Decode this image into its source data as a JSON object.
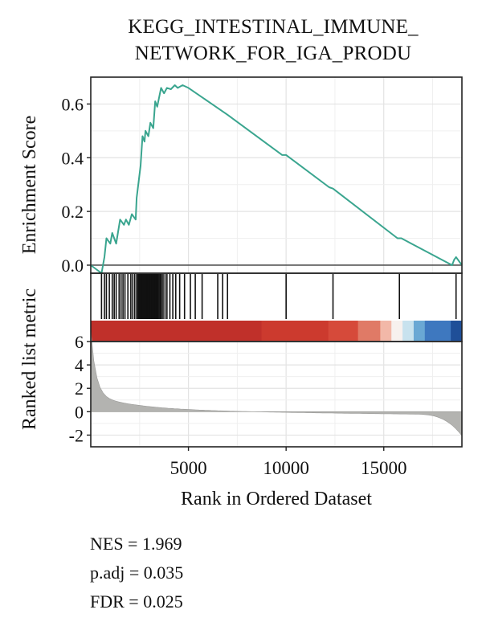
{
  "chart_data": {
    "type": "line",
    "title_lines": [
      "KEGG_INTESTINAL_IMMUNE_",
      "NETWORK_FOR_IGA_PRODU"
    ],
    "xlabel": "Rank in Ordered Dataset",
    "xlim": [
      0,
      19000
    ],
    "x_ticks": [
      5000,
      10000,
      15000
    ],
    "x_tick_labels": [
      "5000",
      "10000",
      "15000"
    ],
    "es_panel": {
      "ylabel": "Enrichment Score",
      "ylim": [
        -0.03,
        0.7
      ],
      "y_ticks": [
        0.0,
        0.2,
        0.4,
        0.6
      ],
      "y_tick_labels": [
        "0.0",
        "0.2",
        "0.4",
        "0.6"
      ],
      "line_color": "#3aa58f",
      "series": [
        {
          "values": [
            [
              0,
              0
            ],
            [
              550,
              -0.03
            ],
            [
              700,
              0.03
            ],
            [
              800,
              0.1
            ],
            [
              1000,
              0.08
            ],
            [
              1100,
              0.12
            ],
            [
              1300,
              0.08
            ],
            [
              1500,
              0.17
            ],
            [
              1700,
              0.15
            ],
            [
              1800,
              0.17
            ],
            [
              1950,
              0.15
            ],
            [
              2100,
              0.19
            ],
            [
              2300,
              0.17
            ],
            [
              2350,
              0.25
            ],
            [
              2550,
              0.37
            ],
            [
              2650,
              0.48
            ],
            [
              2750,
              0.46
            ],
            [
              2800,
              0.5
            ],
            [
              2950,
              0.48
            ],
            [
              3050,
              0.53
            ],
            [
              3200,
              0.51
            ],
            [
              3300,
              0.61
            ],
            [
              3400,
              0.59
            ],
            [
              3600,
              0.66
            ],
            [
              3750,
              0.64
            ],
            [
              3900,
              0.66
            ],
            [
              4100,
              0.655
            ],
            [
              4300,
              0.67
            ],
            [
              4450,
              0.66
            ],
            [
              4700,
              0.67
            ],
            [
              5000,
              0.66
            ],
            [
              7000,
              0.56
            ],
            [
              9800,
              0.41
            ],
            [
              10000,
              0.41
            ],
            [
              12200,
              0.29
            ],
            [
              12400,
              0.285
            ],
            [
              15700,
              0.1
            ],
            [
              15900,
              0.1
            ],
            [
              18500,
              0.0
            ],
            [
              18600,
              0.02
            ],
            [
              18700,
              0.03
            ],
            [
              19000,
              0.0
            ]
          ]
        }
      ]
    },
    "gene_hits": [
      550,
      700,
      800,
      950,
      1100,
      1200,
      1300,
      1450,
      1550,
      1650,
      1750,
      1900,
      2050,
      2150,
      2250,
      2350,
      2420,
      2480,
      2540,
      2600,
      2660,
      2700,
      2750,
      2800,
      2850,
      2900,
      2950,
      3000,
      3050,
      3100,
      3150,
      3200,
      3260,
      3320,
      3380,
      3440,
      3500,
      3560,
      3620,
      3700,
      3800,
      3900,
      4050,
      4200,
      4350,
      4550,
      4800,
      5100,
      5350,
      5700,
      6500,
      6750,
      7000,
      10000,
      12400,
      15800,
      18700
    ],
    "ranked_metric_panel": {
      "ylabel": "Ranked list metric",
      "ylim": [
        -3,
        6
      ],
      "y_ticks": [
        -2,
        0,
        2,
        4,
        6
      ],
      "y_tick_labels": [
        "-2",
        "0",
        "2",
        "4",
        "6"
      ],
      "fill_color": "#b3b3b0"
    },
    "heat_bar_colors": [
      "#c0302a",
      "#cc3a2e",
      "#d64a3a",
      "#e07a66",
      "#f2b8a8",
      "#f7f1ee",
      "#c8e2ee",
      "#6aa8d4",
      "#3e78bf",
      "#1f4f98"
    ],
    "annotations": [
      "NES = 1.969",
      "p.adj = 0.035",
      "FDR = 0.025"
    ]
  }
}
